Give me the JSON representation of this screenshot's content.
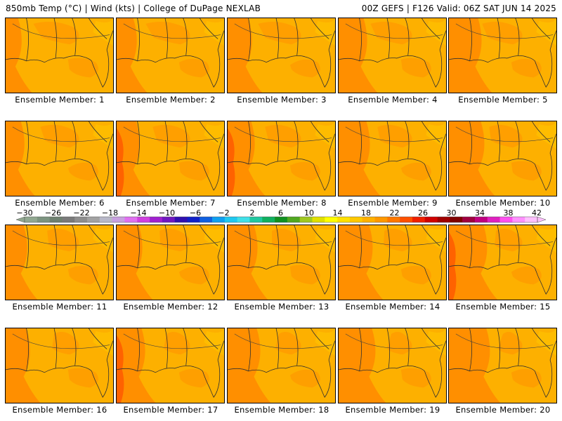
{
  "header": {
    "left": "850mb Temp (°C) | Wind (kts) | College of DuPage NEXLAB",
    "right": "00Z GEFS | F126 Valid: 06Z SAT JUN 14 2025"
  },
  "panels": [
    {
      "label": "Ensemble Member: 1"
    },
    {
      "label": "Ensemble Member: 2"
    },
    {
      "label": "Ensemble Member: 3"
    },
    {
      "label": "Ensemble Member: 4"
    },
    {
      "label": "Ensemble Member: 5"
    },
    {
      "label": "Ensemble Member: 6"
    },
    {
      "label": "Ensemble Member: 7"
    },
    {
      "label": "Ensemble Member: 8"
    },
    {
      "label": "Ensemble Member: 9"
    },
    {
      "label": "Ensemble Member: 10"
    },
    {
      "label": "Ensemble Member: 11"
    },
    {
      "label": "Ensemble Member: 12"
    },
    {
      "label": "Ensemble Member: 13"
    },
    {
      "label": "Ensemble Member: 14"
    },
    {
      "label": "Ensemble Member: 15"
    },
    {
      "label": "Ensemble Member: 16"
    },
    {
      "label": "Ensemble Member: 17"
    },
    {
      "label": "Ensemble Member: 18"
    },
    {
      "label": "Ensemble Member: 19"
    },
    {
      "label": "Ensemble Member: 20"
    }
  ],
  "colorbar": {
    "ticks": [
      "-30",
      "-26",
      "-22",
      "-18",
      "-14",
      "-10",
      "-6",
      "-2",
      "2",
      "6",
      "10",
      "14",
      "18",
      "22",
      "26",
      "30",
      "34",
      "38",
      "42"
    ],
    "colors": [
      "#90a890",
      "#7c9480",
      "#6e8070",
      "#7a7a7a",
      "#8e8e8e",
      "#a2a2a2",
      "#b8b8c8",
      "#c8a0e0",
      "#e070f0",
      "#d040e0",
      "#a020d0",
      "#7018c0",
      "#3010b0",
      "#1020c8",
      "#1060e0",
      "#10a0f0",
      "#20c8f0",
      "#40e0e8",
      "#20c8a0",
      "#10b060",
      "#109020",
      "#50a820",
      "#a0c820",
      "#e0e000",
      "#ffff00",
      "#ffe000",
      "#ffc800",
      "#ffb000",
      "#ff9800",
      "#ff7800",
      "#ff5000",
      "#f02000",
      "#d00000",
      "#a00000",
      "#800000",
      "#a00040",
      "#c00080",
      "#e020c0",
      "#ff50f0",
      "#ff90ff",
      "#ffc0ff"
    ]
  }
}
